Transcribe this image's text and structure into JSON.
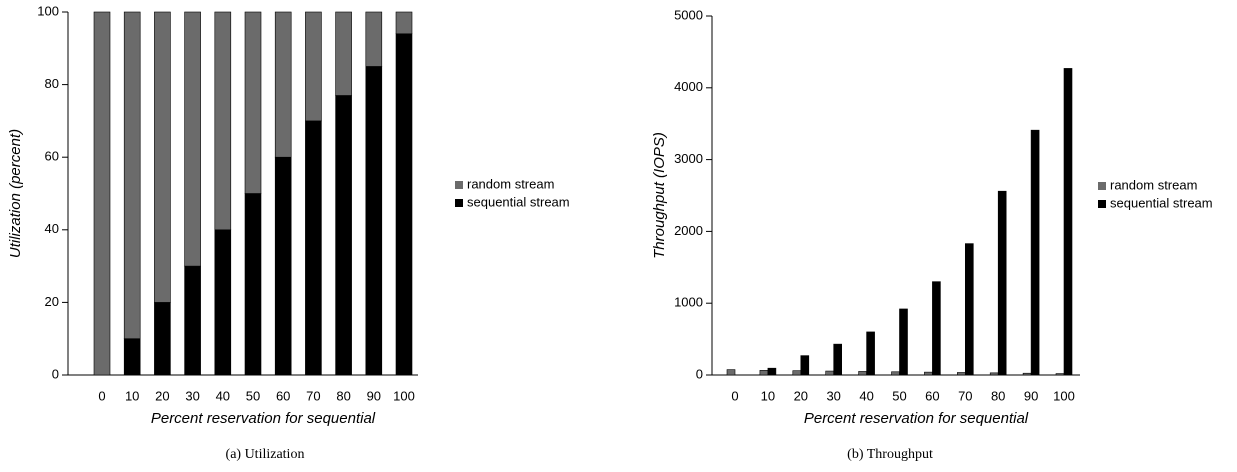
{
  "chart_data": [
    {
      "type": "bar",
      "stacked": true,
      "caption": "(a)  Utilization",
      "xlabel": "Percent reservation for sequential",
      "ylabel": "Utilization (percent)",
      "categories": [
        "0",
        "10",
        "20",
        "30",
        "40",
        "50",
        "60",
        "70",
        "80",
        "90",
        "100"
      ],
      "series": [
        {
          "name": "random stream",
          "color": "#6b6b6b",
          "values": [
            100,
            90,
            80,
            70,
            60,
            50,
            40,
            30,
            23,
            15,
            6
          ]
        },
        {
          "name": "sequential stream",
          "color": "#000000",
          "values": [
            0,
            10,
            20,
            30,
            40,
            50,
            60,
            70,
            77,
            85,
            94
          ]
        }
      ],
      "ylim": [
        0,
        100
      ],
      "yticks": [
        0,
        20,
        40,
        60,
        80,
        100
      ],
      "legend": "right"
    },
    {
      "type": "bar",
      "stacked": false,
      "caption": "(b)  Throughput",
      "xlabel": "Percent reservation for sequential",
      "ylabel": "Throughput (IOPS)",
      "categories": [
        "0",
        "10",
        "20",
        "30",
        "40",
        "50",
        "60",
        "70",
        "80",
        "90",
        "100"
      ],
      "series": [
        {
          "name": "random stream",
          "color": "#6b6b6b",
          "values": [
            75,
            65,
            60,
            55,
            50,
            45,
            40,
            35,
            30,
            25,
            20
          ]
        },
        {
          "name": "sequential stream",
          "color": "#000000",
          "values": [
            0,
            95,
            270,
            430,
            600,
            920,
            1300,
            1830,
            2560,
            3410,
            4270
          ]
        }
      ],
      "ylim": [
        0,
        5000
      ],
      "yticks": [
        0,
        1000,
        2000,
        3000,
        4000,
        5000
      ],
      "legend": "right"
    }
  ]
}
